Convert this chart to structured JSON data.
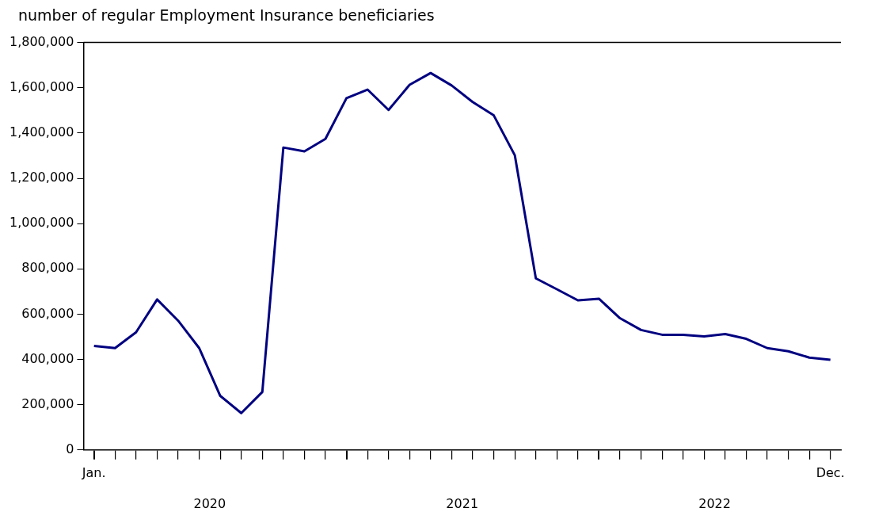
{
  "chart_data": {
    "type": "line",
    "ylabel": "number of regular Employment Insurance beneficiaries",
    "categories": [
      "Jan.",
      null,
      null,
      null,
      null,
      null,
      null,
      null,
      null,
      null,
      null,
      null,
      null,
      null,
      null,
      null,
      null,
      null,
      null,
      null,
      null,
      null,
      null,
      null,
      null,
      null,
      null,
      null,
      null,
      null,
      null,
      null,
      null,
      null,
      null,
      "Dec."
    ],
    "series": [
      {
        "color": "#000080",
        "values": [
          460000,
          450000,
          520000,
          665000,
          571000,
          450000,
          239000,
          163000,
          256000,
          1336000,
          1319000,
          1374000,
          1554000,
          1592000,
          1502000,
          1613000,
          1665000,
          1610000,
          1537000,
          1478000,
          1302000,
          758000,
          710000,
          661000,
          668000,
          582000,
          530000,
          509000,
          509000,
          502000,
          512000,
          491000,
          450000,
          436000,
          408000,
          398000
        ]
      }
    ],
    "ylim": [
      0,
      1800000
    ],
    "yticks": [
      0,
      {
        "value": 200000,
        "label": "200,000"
      },
      {
        "value": 400000,
        "label": "400,000"
      },
      {
        "value": 600000,
        "label": "600,000"
      },
      {
        "value": 800000,
        "label": "800,000"
      },
      {
        "value": 1000000,
        "label": "1,000,000"
      },
      {
        "value": 1200000,
        "label": "1,200,000"
      },
      {
        "value": 1400000,
        "label": "1,400,000"
      },
      {
        "value": 1600000,
        "label": "1,600,000"
      },
      {
        "value": 1800000,
        "label": "1,800,000"
      }
    ],
    "annotations": [
      "2020",
      "2021",
      "2022"
    ],
    "grid": false,
    "legend": false,
    "marker": "none",
    "line_style": "solid"
  }
}
